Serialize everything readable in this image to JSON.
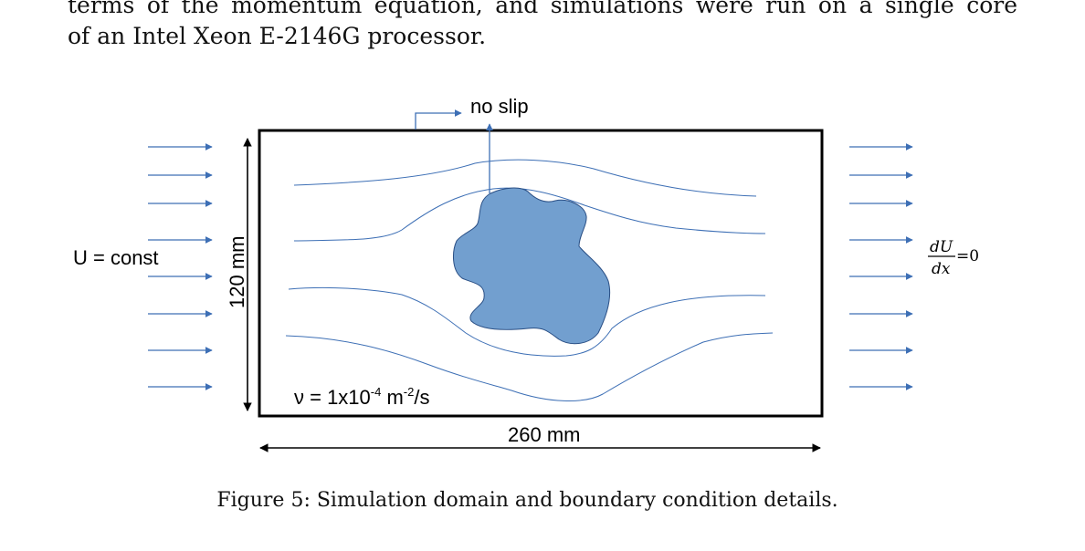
{
  "paragraph": {
    "line1": "terms of the momentum equation, and simulations were run on a single core",
    "line2": "of an Intel Xeon E-2146G processor."
  },
  "figure": {
    "label_top": "no slip",
    "label_inlet": "U = const",
    "label_height": "120 mm",
    "label_viscosity_prefix": "ν = 1x10",
    "label_viscosity_exp": "-4",
    "label_viscosity_unit": " m",
    "label_viscosity_unit_exp": "-2",
    "label_viscosity_suffix": "/s",
    "label_width": "260 mm",
    "outlet_numerator": "dU",
    "outlet_denominator": "dx",
    "outlet_rhs": "=0",
    "colors": {
      "arrow": "#3d6fb5",
      "obstacle_fill": "#729fcf",
      "streamline": "#3d6fb5",
      "frame": "#000000"
    }
  },
  "caption": {
    "text": "Figure 5: Simulation domain and boundary condition details."
  }
}
